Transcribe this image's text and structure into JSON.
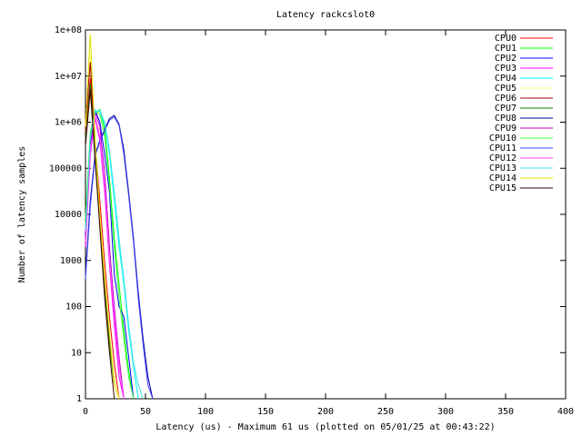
{
  "chart_data": {
    "type": "line",
    "title": "Latency rackcslot0",
    "x_label": "Latency (us) - Maximum 61 us (plotted on 05/01/25 at 00:43:22)",
    "y_label": "Number of latency samples",
    "log_y": true,
    "xlim": [
      0,
      400
    ],
    "xticks": [
      0,
      50,
      100,
      150,
      200,
      250,
      300,
      350,
      400
    ],
    "ylim": [
      1,
      100000000
    ],
    "yticks": [
      {
        "value": 100000000,
        "label": "1e+08"
      },
      {
        "value": 10000000,
        "label": "1e+07"
      },
      {
        "value": 1000000,
        "label": "1e+06"
      },
      100000,
      10000,
      1000,
      100,
      10,
      1
    ],
    "x": [
      0,
      4,
      8,
      12,
      16,
      20,
      24,
      28,
      32,
      36,
      40,
      44,
      48,
      52,
      56,
      60
    ],
    "series": [
      {
        "name": "CPU0",
        "color": "#ff0000",
        "values": [
          600000,
          9000000,
          400000,
          20000,
          900,
          60,
          6,
          1,
          null,
          null,
          null,
          null,
          null,
          null,
          null,
          null
        ]
      },
      {
        "name": "CPU1",
        "color": "#00ff00",
        "values": [
          8000,
          600000,
          1500000,
          1900000,
          700000,
          60000,
          3000,
          300,
          30,
          4,
          1,
          null,
          null,
          null,
          null,
          null
        ]
      },
      {
        "name": "CPU2",
        "color": "#0000ff",
        "values": [
          3000,
          300000,
          1800000,
          1000000,
          200000,
          30000,
          500,
          100,
          60,
          8,
          1,
          null,
          null,
          null,
          null,
          null
        ]
      },
      {
        "name": "CPU3",
        "color": "#ff00ff",
        "values": [
          2000,
          200000,
          1200000,
          400000,
          30000,
          800,
          40,
          3,
          1,
          null,
          null,
          null,
          null,
          null,
          null,
          null
        ]
      },
      {
        "name": "CPU4",
        "color": "#00ffff",
        "values": [
          5000,
          500000,
          1800000,
          1700000,
          900000,
          200000,
          20000,
          2000,
          300,
          30,
          5,
          1,
          null,
          null,
          null,
          null
        ]
      },
      {
        "name": "CPU5",
        "color": "#ffff80",
        "values": [
          800000,
          30000000,
          500000,
          10000,
          500,
          30,
          3,
          1,
          null,
          null,
          null,
          null,
          null,
          null,
          null,
          null
        ]
      },
      {
        "name": "CPU6",
        "color": "#a00000",
        "values": [
          1000000,
          20000000,
          300000,
          8000,
          300,
          20,
          2,
          null,
          null,
          null,
          null,
          null,
          null,
          null,
          null,
          null
        ]
      },
      {
        "name": "CPU7",
        "color": "#008000",
        "values": [
          400000,
          7000000,
          200000,
          6000,
          200,
          15,
          2,
          null,
          null,
          null,
          null,
          null,
          null,
          null,
          null,
          null
        ]
      },
      {
        "name": "CPU8",
        "color": "#0000a0",
        "values": [
          500,
          20000,
          200000,
          400000,
          700000,
          1200000,
          1400000,
          900000,
          250000,
          30000,
          3000,
          200,
          20,
          3,
          1,
          null
        ]
      },
      {
        "name": "CPU9",
        "color": "#c000c0",
        "values": [
          4000,
          400000,
          1600000,
          800000,
          80000,
          2000,
          100,
          8,
          1,
          null,
          null,
          null,
          null,
          null,
          null,
          null
        ]
      },
      {
        "name": "CPU10",
        "color": "#40ff40",
        "values": [
          6000,
          500000,
          1700000,
          1500000,
          500000,
          40000,
          2000,
          150,
          20,
          3,
          1,
          null,
          null,
          null,
          null,
          null
        ]
      },
      {
        "name": "CPU11",
        "color": "#4040ff",
        "values": [
          400,
          15000,
          180000,
          380000,
          650000,
          1100000,
          1300000,
          850000,
          200000,
          25000,
          2500,
          150,
          15,
          2,
          1,
          null
        ]
      },
      {
        "name": "CPU12",
        "color": "#ff40ff",
        "values": [
          2500,
          250000,
          1300000,
          500000,
          40000,
          1000,
          60,
          5,
          1,
          null,
          null,
          null,
          null,
          null,
          null,
          null
        ]
      },
      {
        "name": "CPU13",
        "color": "#40e0e0",
        "values": [
          4500,
          450000,
          1700000,
          1800000,
          1000000,
          250000,
          30000,
          3000,
          400,
          40,
          6,
          2,
          1,
          null,
          null,
          null
        ]
      },
      {
        "name": "CPU14",
        "color": "#e0e000",
        "values": [
          900000,
          80000000,
          400000,
          9000,
          400,
          25,
          2,
          1,
          null,
          null,
          null,
          null,
          null,
          null,
          null,
          null
        ]
      },
      {
        "name": "CPU15",
        "color": "#400000",
        "values": [
          300000,
          5000000,
          150000,
          5000,
          150,
          10,
          1,
          null,
          null,
          null,
          null,
          null,
          null,
          null,
          null,
          null
        ]
      }
    ]
  }
}
